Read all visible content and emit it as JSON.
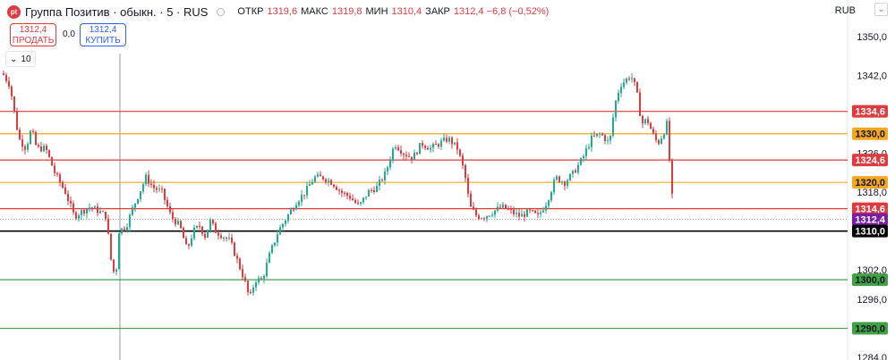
{
  "header": {
    "logo_text": "pt",
    "title": "Группа Позитив · обыкн. · 5 · RUS",
    "ohlc": [
      {
        "label": "ОТКР",
        "value": "1319,6"
      },
      {
        "label": "МАКС",
        "value": "1319,8"
      },
      {
        "label": "МИН",
        "value": "1310,4"
      },
      {
        "label": "ЗАКР",
        "value": "1312,4 −6,8 (−0,52%)"
      }
    ],
    "currency": "RUB"
  },
  "trade": {
    "sell_price": "1312,4",
    "sell_label": "ПРОДАТЬ",
    "spread": "0,0",
    "buy_price": "1312,4",
    "buy_label": "КУПИТЬ"
  },
  "volume_toggle": {
    "icon": "chevron-down-icon",
    "value": "10"
  },
  "colors": {
    "up": "#22ab94",
    "down": "#e03a3e",
    "red_level": "#e03a3e",
    "orange_level": "#f5a623",
    "green_level": "#43a047"
  },
  "chart_data": {
    "type": "candlestick",
    "y_axis_ticks": [
      1350.0,
      1342.0,
      1326.0,
      1318.0,
      1302.0,
      1296.0,
      1284.0
    ],
    "y_axis_labels": [
      "1350,0",
      "1342,0",
      "1326,0",
      "1318,0",
      "1302,0",
      "1296,0",
      "1284,0"
    ],
    "ylim": [
      1283,
      1353
    ],
    "levels": [
      {
        "label": "1334,6",
        "value": 1334.6,
        "kind": "red"
      },
      {
        "label": "1330,0",
        "value": 1330.0,
        "kind": "orange"
      },
      {
        "label": "1324,6",
        "value": 1324.6,
        "kind": "red"
      },
      {
        "label": "1320,0",
        "value": 1320.0,
        "kind": "orange"
      },
      {
        "label": "1314,6",
        "value": 1314.6,
        "kind": "red"
      },
      {
        "label": "1312,4",
        "value": 1312.4,
        "kind": "last"
      },
      {
        "label": "1310,0",
        "value": 1310.0,
        "kind": "black"
      },
      {
        "label": "1300,0",
        "value": 1300.0,
        "kind": "green"
      },
      {
        "label": "1290,0",
        "value": 1290.0,
        "kind": "green"
      }
    ],
    "close_path": [
      [
        0,
        1343
      ],
      [
        10,
        1340
      ],
      [
        20,
        1329
      ],
      [
        28,
        1327
      ],
      [
        34,
        1331
      ],
      [
        40,
        1327
      ],
      [
        50,
        1327
      ],
      [
        60,
        1322
      ],
      [
        72,
        1318
      ],
      [
        82,
        1313
      ],
      [
        90,
        1314
      ],
      [
        100,
        1315
      ],
      [
        110,
        1314
      ],
      [
        118,
        1313
      ],
      [
        122,
        1305
      ],
      [
        128,
        1300
      ],
      [
        132,
        1310
      ],
      [
        140,
        1311
      ],
      [
        148,
        1315
      ],
      [
        155,
        1318
      ],
      [
        162,
        1321
      ],
      [
        170,
        1319
      ],
      [
        180,
        1318
      ],
      [
        190,
        1313
      ],
      [
        200,
        1311
      ],
      [
        208,
        1306
      ],
      [
        215,
        1310
      ],
      [
        222,
        1311
      ],
      [
        228,
        1309
      ],
      [
        234,
        1312
      ],
      [
        240,
        1310
      ],
      [
        248,
        1309
      ],
      [
        256,
        1308
      ],
      [
        264,
        1304
      ],
      [
        272,
        1300
      ],
      [
        278,
        1296
      ],
      [
        284,
        1300
      ],
      [
        292,
        1300
      ],
      [
        300,
        1305
      ],
      [
        310,
        1310
      ],
      [
        320,
        1313
      ],
      [
        330,
        1316
      ],
      [
        340,
        1318
      ],
      [
        350,
        1321
      ],
      [
        360,
        1321
      ],
      [
        370,
        1320
      ],
      [
        380,
        1318
      ],
      [
        390,
        1317
      ],
      [
        400,
        1315
      ],
      [
        410,
        1318
      ],
      [
        420,
        1319
      ],
      [
        430,
        1322
      ],
      [
        440,
        1328
      ],
      [
        450,
        1326
      ],
      [
        460,
        1325
      ],
      [
        470,
        1328
      ],
      [
        480,
        1327
      ],
      [
        490,
        1328
      ],
      [
        500,
        1329
      ],
      [
        510,
        1327
      ],
      [
        518,
        1322
      ],
      [
        524,
        1315
      ],
      [
        532,
        1313
      ],
      [
        540,
        1313
      ],
      [
        550,
        1314
      ],
      [
        560,
        1315
      ],
      [
        570,
        1314
      ],
      [
        580,
        1313
      ],
      [
        590,
        1314
      ],
      [
        600,
        1313
      ],
      [
        610,
        1316
      ],
      [
        620,
        1321
      ],
      [
        630,
        1320
      ],
      [
        640,
        1322
      ],
      [
        650,
        1325
      ],
      [
        660,
        1329
      ],
      [
        670,
        1330
      ],
      [
        680,
        1328
      ],
      [
        686,
        1336
      ],
      [
        692,
        1340
      ],
      [
        698,
        1341
      ],
      [
        704,
        1342
      ],
      [
        710,
        1339
      ],
      [
        716,
        1332
      ],
      [
        722,
        1333
      ],
      [
        728,
        1330
      ],
      [
        734,
        1328
      ],
      [
        740,
        1330
      ],
      [
        744,
        1332
      ],
      [
        748,
        1322
      ],
      [
        752,
        1312
      ]
    ]
  }
}
